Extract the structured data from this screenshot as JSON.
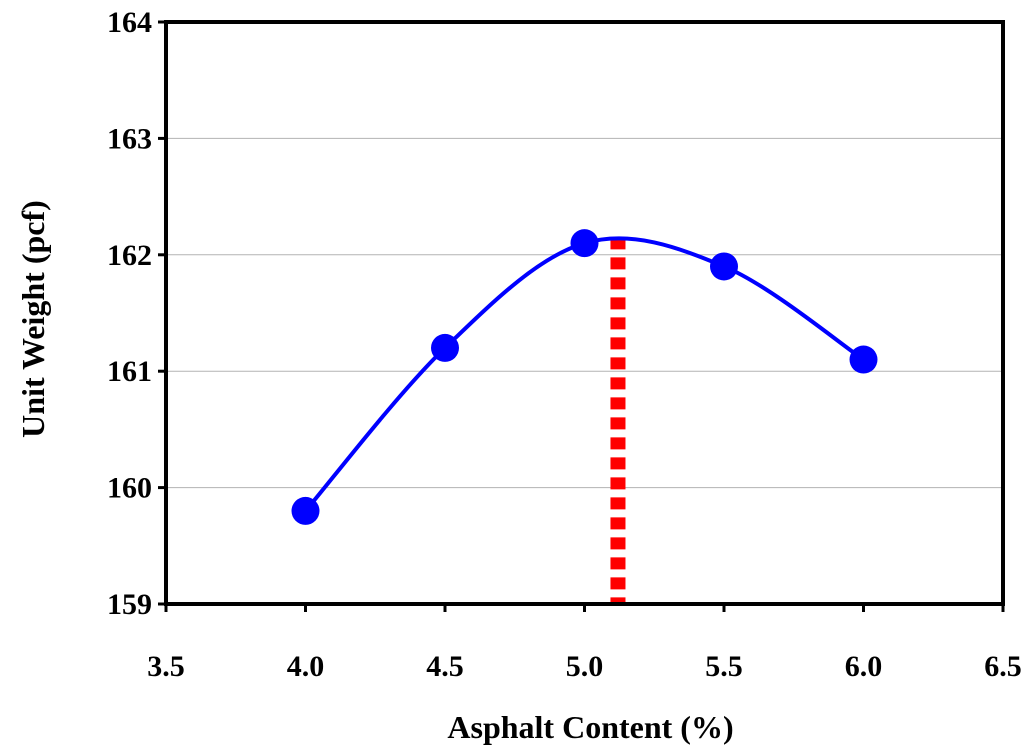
{
  "chart_data": {
    "type": "line",
    "xlabel": "Asphalt Content (%)",
    "ylabel": "Unit Weight (pcf)",
    "xlim": [
      3.5,
      6.5
    ],
    "ylim": [
      159,
      164
    ],
    "x_ticks": [
      "3.5",
      "4.0",
      "4.5",
      "5.0",
      "5.5",
      "6.0",
      "6.5"
    ],
    "y_ticks": [
      "159",
      "160",
      "161",
      "162",
      "163",
      "164"
    ],
    "grid": "horizontal",
    "series": [
      {
        "marker": "circle",
        "color": "#0000ff",
        "smooth": true,
        "points": [
          {
            "x": 4.0,
            "y": 159.8
          },
          {
            "x": 4.5,
            "y": 161.2
          },
          {
            "x": 5.0,
            "y": 162.1
          },
          {
            "x": 5.5,
            "y": 161.9
          },
          {
            "x": 6.0,
            "y": 161.1
          }
        ]
      }
    ],
    "optimum_line": {
      "x": 5.12,
      "y_from": 159,
      "y_to": 162.15,
      "color": "#ff0000",
      "style": "dotted"
    }
  }
}
